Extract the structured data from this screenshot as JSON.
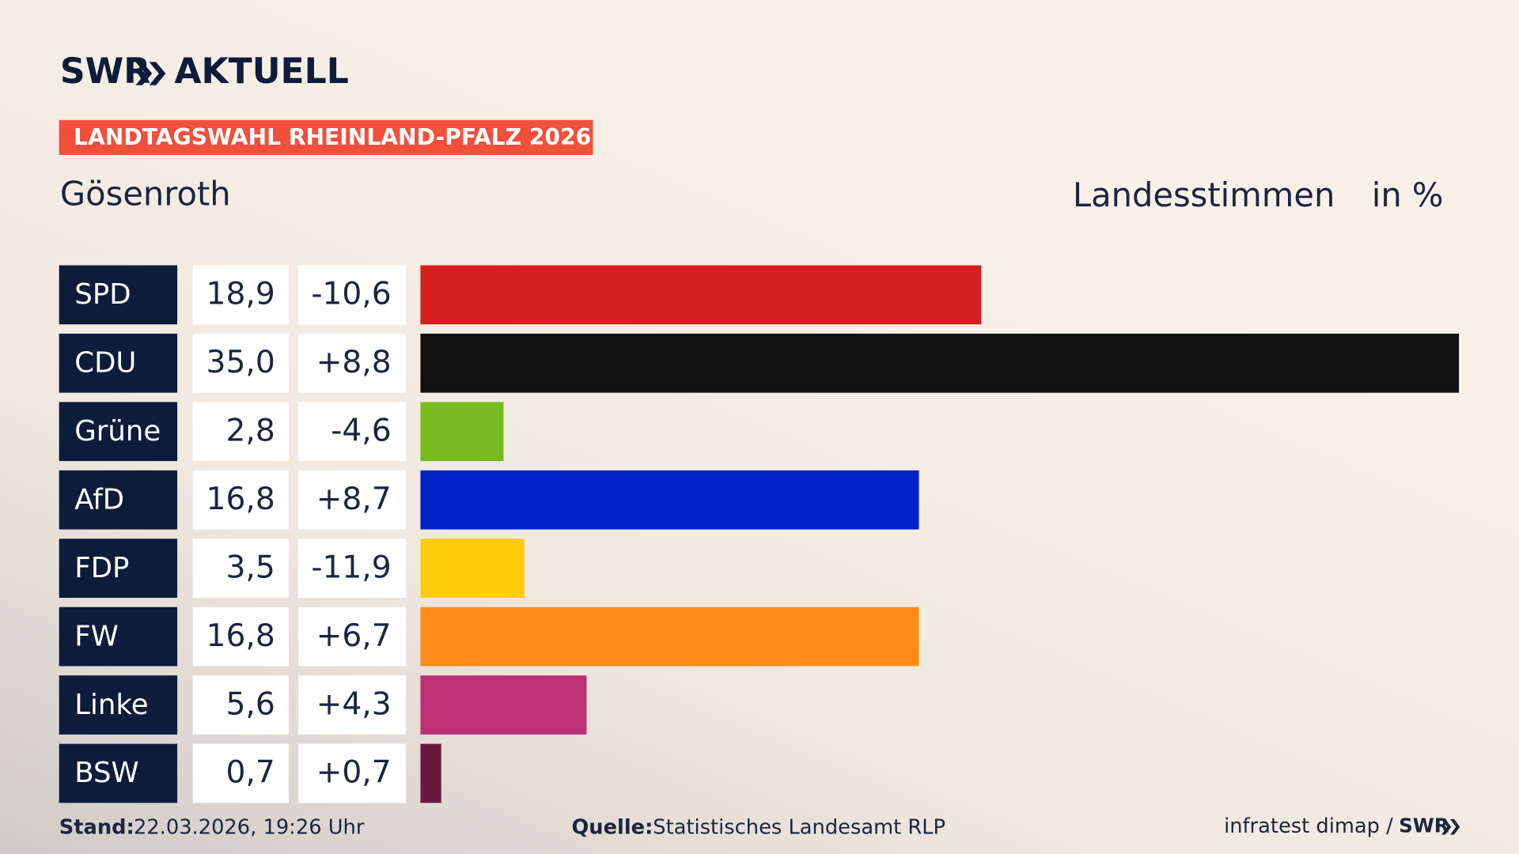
{
  "header": {
    "logo": "SWR",
    "brand": "AKTUELL",
    "banner": "LANDTAGSWAHL RHEINLAND-PFALZ 2026"
  },
  "chart_data": {
    "type": "bar",
    "title": "Gösenroth",
    "subtitle": "Landesstimmen",
    "unit": "in %",
    "categories": [
      "SPD",
      "CDU",
      "Grüne",
      "AfD",
      "FDP",
      "FW",
      "Linke",
      "BSW"
    ],
    "values": [
      18.9,
      35.0,
      2.8,
      16.8,
      3.5,
      16.8,
      5.6,
      0.7
    ],
    "value_labels": [
      "18,9",
      "35,0",
      "2,8",
      "16,8",
      "3,5",
      "16,8",
      "5,6",
      "0,7"
    ],
    "changes": [
      "-10,6",
      "+8,8",
      "-4,6",
      "+8,7",
      "-11,9",
      "+6,7",
      "+4,3",
      "+0,7"
    ],
    "colors": [
      "#d61f1f",
      "#111111",
      "#78bb1e",
      "#0020c8",
      "#ffcc0a",
      "#ff8c19",
      "#bc3175",
      "#6b1a3e"
    ],
    "xlim": [
      0,
      35
    ]
  },
  "footer": {
    "stand_label": "Stand:",
    "stand": "22.03.2026, 19:26 Uhr",
    "source_label": "Quelle:",
    "source": "Statistisches Landesamt RLP",
    "credit": "infratest dimap /",
    "logo": "SWR"
  }
}
